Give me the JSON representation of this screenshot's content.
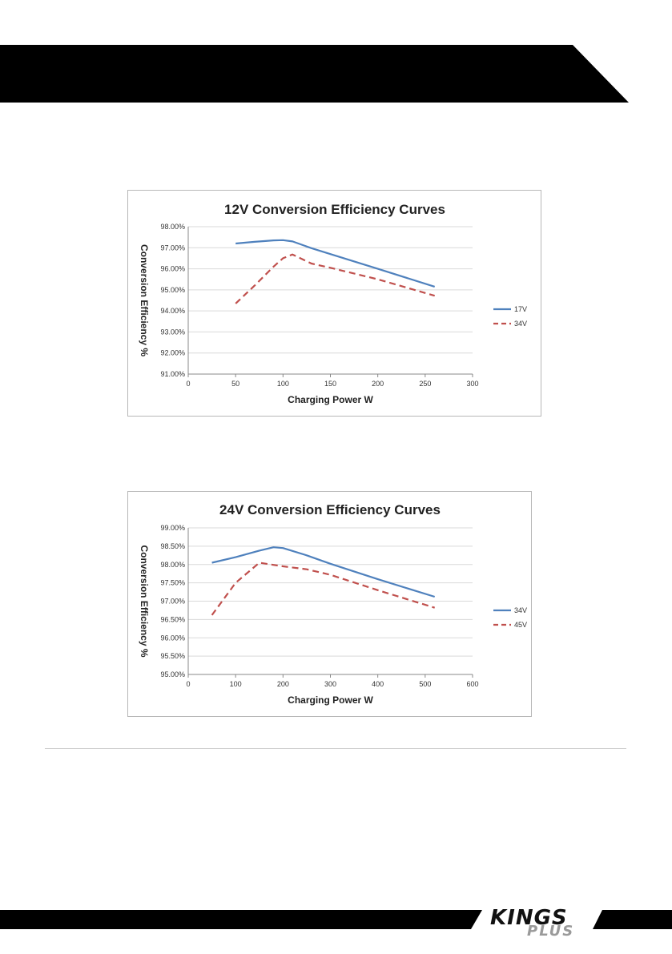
{
  "colors": {
    "header": "#000000",
    "footer": "#000000",
    "series_a": "#4f81bd",
    "series_b": "#c0504d",
    "grid": "#d9d9d9"
  },
  "brand": {
    "main": "KINGS",
    "sub": "PLUS"
  },
  "chart_data": [
    {
      "type": "line",
      "title": "12V Conversion Efficiency Curves",
      "xlabel": "Charging Power W",
      "ylabel": "Conversion Efficiency %",
      "xlim": [
        0,
        300
      ],
      "ylim": [
        91,
        98
      ],
      "x_ticks": [
        0,
        50,
        100,
        150,
        200,
        250,
        300
      ],
      "y_ticks": [
        "91.00%",
        "92.00%",
        "93.00%",
        "94.00%",
        "95.00%",
        "96.00%",
        "97.00%",
        "98.00%"
      ],
      "y_tick_values": [
        91,
        92,
        93,
        94,
        95,
        96,
        97,
        98
      ],
      "grid": true,
      "legend_position": "right",
      "series": [
        {
          "name": "17V",
          "style": "solid",
          "color": "#4f81bd",
          "x": [
            50,
            70,
            90,
            100,
            110,
            130,
            150,
            200,
            260
          ],
          "y": [
            97.2,
            97.28,
            97.35,
            97.36,
            97.3,
            96.98,
            96.7,
            96.0,
            95.15
          ]
        },
        {
          "name": "34V",
          "style": "dashed",
          "color": "#c0504d",
          "x": [
            50,
            70,
            90,
            100,
            110,
            130,
            150,
            200,
            260
          ],
          "y": [
            94.35,
            95.2,
            96.1,
            96.5,
            96.68,
            96.25,
            96.05,
            95.5,
            94.72
          ]
        }
      ]
    },
    {
      "type": "line",
      "title": "24V Conversion Efficiency Curves",
      "xlabel": "Charging Power W",
      "ylabel": "Conversion Efficiency %",
      "xlim": [
        0,
        600
      ],
      "ylim": [
        95,
        99
      ],
      "x_ticks": [
        0,
        100,
        200,
        300,
        400,
        500,
        600
      ],
      "y_ticks": [
        "95.00%",
        "95.50%",
        "96.00%",
        "96.50%",
        "97.00%",
        "97.50%",
        "98.00%",
        "98.50%",
        "99.00%"
      ],
      "y_tick_values": [
        95,
        95.5,
        96,
        96.5,
        97,
        97.5,
        98,
        98.5,
        99
      ],
      "grid": true,
      "legend_position": "right",
      "series": [
        {
          "name": "34V",
          "style": "solid",
          "color": "#4f81bd",
          "x": [
            50,
            100,
            150,
            180,
            200,
            250,
            300,
            400,
            520
          ],
          "y": [
            98.05,
            98.2,
            98.38,
            98.47,
            98.45,
            98.25,
            98.02,
            97.6,
            97.12
          ]
        },
        {
          "name": "45V",
          "style": "dashed",
          "color": "#c0504d",
          "x": [
            50,
            100,
            150,
            200,
            250,
            300,
            400,
            520
          ],
          "y": [
            96.62,
            97.5,
            98.05,
            97.95,
            97.87,
            97.72,
            97.3,
            96.82
          ]
        }
      ]
    }
  ]
}
